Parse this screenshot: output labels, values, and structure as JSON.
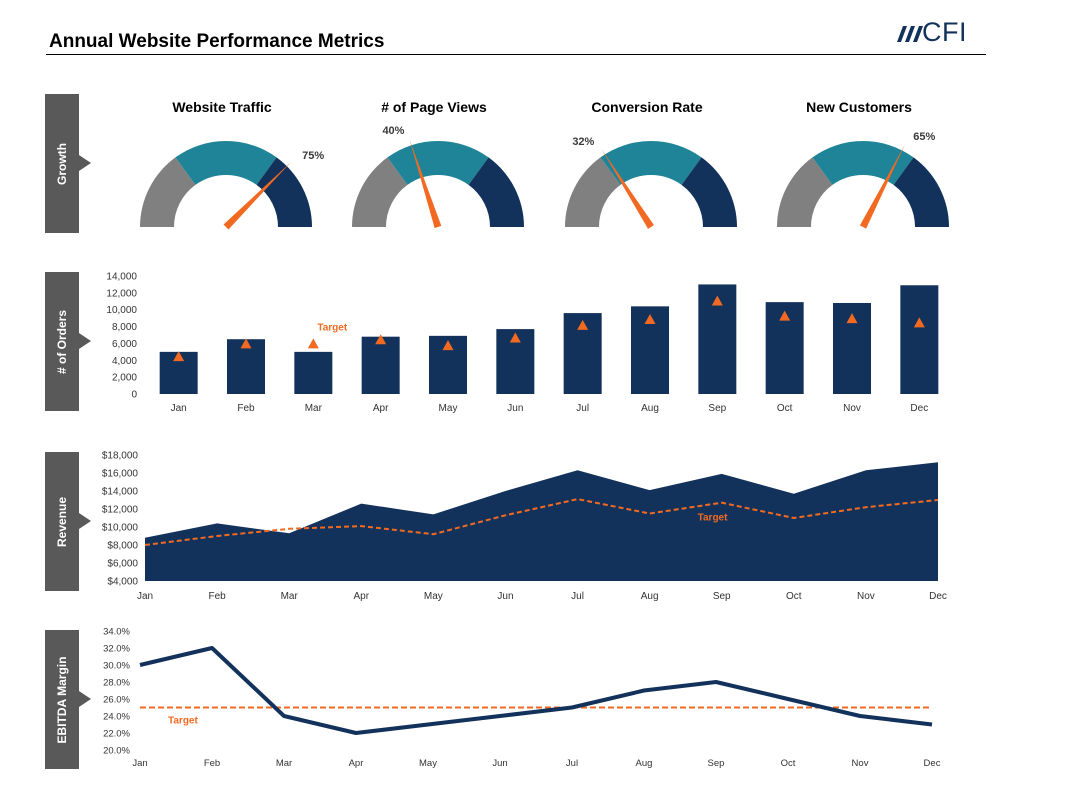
{
  "header": {
    "title": "Annual Website Performance Metrics",
    "logo_text": "CFI"
  },
  "colors": {
    "navy": "#13325b",
    "teal": "#1f8497",
    "gray": "#808080",
    "orange": "#f26a21",
    "tab": "#595959"
  },
  "sections": {
    "growth": "Growth",
    "orders": "# of Orders",
    "revenue": "Revenue",
    "ebitda": "EBITDA Margin"
  },
  "gauges": [
    {
      "title": "Website Traffic",
      "value": 75,
      "label": "75%"
    },
    {
      "title": "# of Page Views",
      "value": 40,
      "label": "40%"
    },
    {
      "title": "Conversion Rate",
      "value": 32,
      "label": "32%"
    },
    {
      "title": "New Customers",
      "value": 65,
      "label": "65%"
    }
  ],
  "chart_data": [
    {
      "type": "bar",
      "ylabel": "# of Orders",
      "categories": [
        "Jan",
        "Feb",
        "Mar",
        "Apr",
        "May",
        "Jun",
        "Jul",
        "Aug",
        "Sep",
        "Oct",
        "Nov",
        "Dec"
      ],
      "series": [
        {
          "values": [
            5000,
            6500,
            5000,
            6800,
            6900,
            7700,
            9600,
            10400,
            13000,
            10900,
            10800,
            12900
          ]
        },
        {
          "name": "Target",
          "values": [
            4500,
            6000,
            6000,
            6500,
            5800,
            6700,
            8200,
            8900,
            11100,
            9300,
            9000,
            8500
          ]
        }
      ],
      "ylim": [
        0,
        14000
      ],
      "yticks": [
        "0",
        "2,000",
        "4,000",
        "6,000",
        "8,000",
        "10,000",
        "12,000",
        "14,000"
      ],
      "annotation": "Target"
    },
    {
      "type": "area",
      "ylabel": "Revenue",
      "categories": [
        "Jan",
        "Feb",
        "Mar",
        "Apr",
        "May",
        "Jun",
        "Jul",
        "Aug",
        "Sep",
        "Oct",
        "Nov",
        "Dec"
      ],
      "series": [
        {
          "values": [
            8800,
            10400,
            9300,
            12600,
            11400,
            14000,
            16300,
            14100,
            15900,
            13700,
            16300,
            17200
          ]
        },
        {
          "name": "Target",
          "values": [
            8000,
            9000,
            9800,
            10100,
            9200,
            11300,
            13100,
            11500,
            12700,
            11000,
            12200,
            13000
          ]
        }
      ],
      "ylim": [
        4000,
        18000
      ],
      "yticks": [
        "$4,000",
        "$6,000",
        "$8,000",
        "$10,000",
        "$12,000",
        "$14,000",
        "$16,000",
        "$18,000"
      ],
      "annotation": "Target"
    },
    {
      "type": "line",
      "ylabel": "EBITDA Margin",
      "categories": [
        "Jan",
        "Feb",
        "Mar",
        "Apr",
        "May",
        "Jun",
        "Jul",
        "Aug",
        "Sep",
        "Oct",
        "Nov",
        "Dec"
      ],
      "series": [
        {
          "values": [
            30.0,
            32.0,
            24.0,
            22.0,
            23.0,
            24.0,
            25.0,
            27.0,
            28.0,
            26.0,
            24.0,
            23.0
          ]
        },
        {
          "name": "Target",
          "values": [
            25,
            25,
            25,
            25,
            25,
            25,
            25,
            25,
            25,
            25,
            25,
            25
          ]
        }
      ],
      "ylim": [
        20,
        34
      ],
      "yticks": [
        "20.0%",
        "22.0%",
        "24.0%",
        "26.0%",
        "28.0%",
        "30.0%",
        "32.0%",
        "34.0%"
      ],
      "annotation": "Target"
    }
  ]
}
